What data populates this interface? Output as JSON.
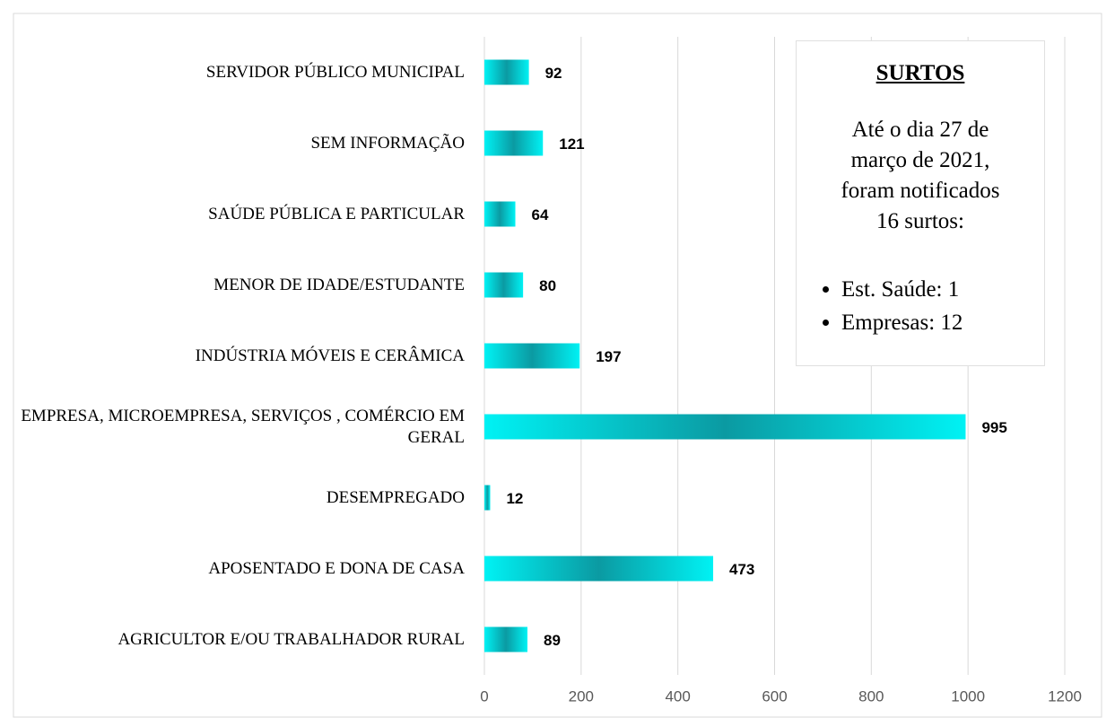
{
  "chart_data": {
    "type": "hbar",
    "categories": [
      "SERVIDOR PÚBLICO MUNICIPAL",
      "SEM  INFORMAÇÃO",
      "SAÚDE PÚBLICA  E PARTICULAR",
      "MENOR DE IDADE/ESTUDANTE",
      "INDÚSTRIA MÓVEIS E CERÂMICA",
      "EMPRESA, MICROEMPRESA, SERVIÇOS , COMÉRCIO EM GERAL",
      "DESEMPREGADO",
      "APOSENTADO E DONA DE CASA",
      "AGRICULTOR E/OU TRABALHADOR RURAL"
    ],
    "values": [
      92,
      121,
      64,
      80,
      197,
      995,
      12,
      473,
      89
    ],
    "color": "#00eef0",
    "xlim": [
      0,
      1200
    ],
    "xticks": [
      0,
      200,
      400,
      600,
      800,
      1000,
      1200
    ],
    "grid": true,
    "annotation": {
      "title": "SURTOS",
      "lines": [
        "Até o dia 27 de",
        "março de 2021,",
        "foram notificados",
        "16 surtos:"
      ],
      "bullets": [
        "Est. Saúde: 1",
        "Empresas: 12"
      ]
    }
  }
}
